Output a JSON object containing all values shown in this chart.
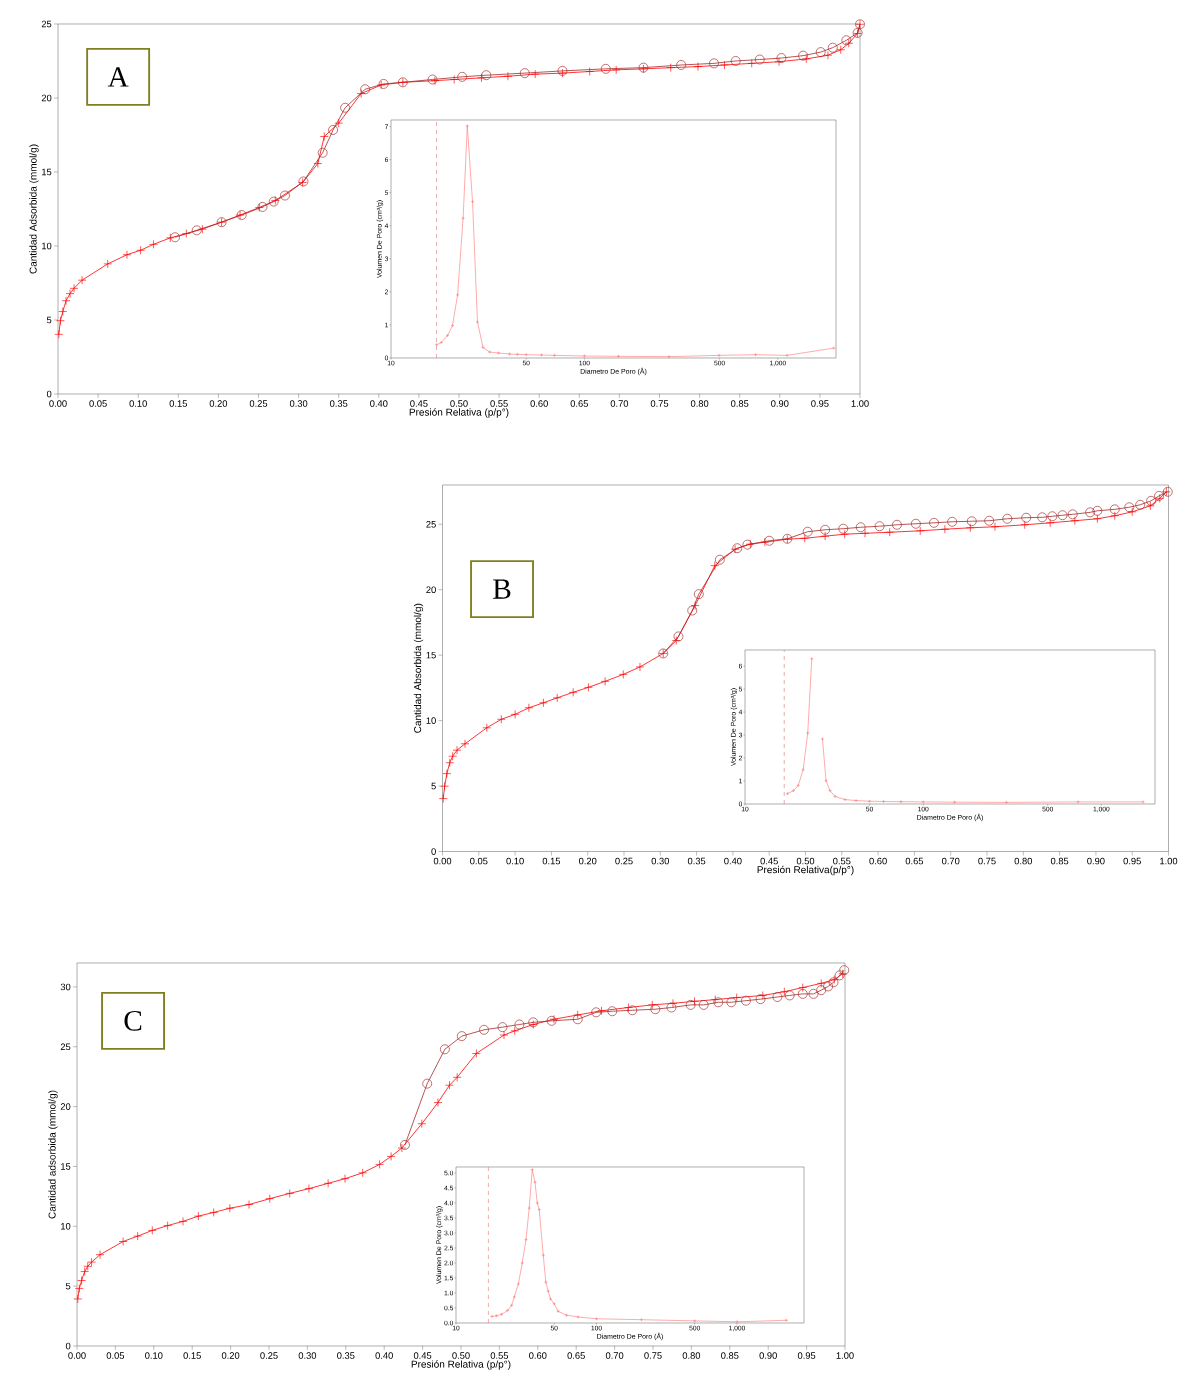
{
  "chart_data": [
    {
      "type": "line",
      "xlabel": "Presión Relativa (p/p°)",
      "ylabel": "Cantidad Adsorbida (mmol/g)",
      "annotations": [
        "A"
      ],
      "xlim": [
        0,
        1
      ],
      "ylim": [
        0,
        25
      ],
      "xticks": [
        {
          "value": 0,
          "label": "0.00"
        },
        {
          "value": 0.05,
          "label": "0.05"
        },
        {
          "value": 0.1,
          "label": "0.10"
        },
        {
          "value": 0.15,
          "label": "0.15"
        },
        {
          "value": 0.2,
          "label": "0.20"
        },
        {
          "value": 0.25,
          "label": "0.25"
        },
        {
          "value": 0.3,
          "label": "0.30"
        },
        {
          "value": 0.35,
          "label": "0.35"
        },
        {
          "value": 0.4,
          "label": "0.40"
        },
        {
          "value": 0.45,
          "label": "0.45"
        },
        {
          "value": 0.5,
          "label": "0.50"
        },
        {
          "value": 0.55,
          "label": "0.55"
        },
        {
          "value": 0.6,
          "label": "0.60"
        },
        {
          "value": 0.65,
          "label": "0.65"
        },
        {
          "value": 0.7,
          "label": "0.70"
        },
        {
          "value": 0.75,
          "label": "0.75"
        },
        {
          "value": 0.8,
          "label": "0.80"
        },
        {
          "value": 0.85,
          "label": "0.85"
        },
        {
          "value": 0.9,
          "label": "0.90"
        },
        {
          "value": 0.95,
          "label": "0.95"
        },
        {
          "value": 1,
          "label": "1.00"
        }
      ],
      "yticks": [
        0,
        5,
        10,
        15,
        20,
        25
      ],
      "series": [
        {
          "color": "#ff0000",
          "marker": "cross",
          "x": [
            0.001,
            0.003,
            0.006,
            0.01,
            0.015,
            0.02,
            0.03,
            0.062,
            0.086,
            0.103,
            0.119,
            0.14,
            0.16,
            0.18,
            0.204,
            0.227,
            0.251,
            0.271,
            0.305,
            0.324,
            0.332,
            0.35,
            0.378,
            0.403,
            0.43,
            0.47,
            0.494,
            0.528,
            0.561,
            0.595,
            0.629,
            0.663,
            0.696,
            0.73,
            0.764,
            0.798,
            0.831,
            0.865,
            0.899,
            0.933,
            0.96,
            0.976,
            0.986,
            0.997,
            1.0
          ],
          "values": [
            4.03,
            4.95,
            5.57,
            6.3,
            6.78,
            7.14,
            7.69,
            8.79,
            9.41,
            9.71,
            10.11,
            10.55,
            10.84,
            11.14,
            11.61,
            12.09,
            12.6,
            13.08,
            14.29,
            15.57,
            17.4,
            18.3,
            20.3,
            20.88,
            21.06,
            21.17,
            21.25,
            21.36,
            21.47,
            21.61,
            21.68,
            21.79,
            21.9,
            21.97,
            22.05,
            22.12,
            22.23,
            22.34,
            22.45,
            22.64,
            22.89,
            23.26,
            23.7,
            24.36,
            24.98
          ]
        },
        {
          "color": "#a52a2a",
          "marker": "circle",
          "x": [
            1.0,
            0.997,
            0.983,
            0.966,
            0.951,
            0.929,
            0.902,
            0.875,
            0.845,
            0.818,
            0.777,
            0.73,
            0.683,
            0.629,
            0.582,
            0.534,
            0.504,
            0.467,
            0.43,
            0.406,
            0.383,
            0.358,
            0.343,
            0.33,
            0.306,
            0.283,
            0.269,
            0.255,
            0.229,
            0.204,
            0.173,
            0.146
          ],
          "values": [
            24.98,
            24.4,
            23.9,
            23.4,
            23.1,
            22.86,
            22.7,
            22.6,
            22.5,
            22.34,
            22.23,
            22.05,
            21.97,
            21.83,
            21.68,
            21.54,
            21.43,
            21.25,
            21.06,
            20.95,
            20.59,
            19.34,
            17.84,
            16.3,
            14.36,
            13.41,
            13.0,
            12.64,
            12.09,
            11.61,
            11.06,
            10.59
          ]
        }
      ]
    },
    {
      "type": "line",
      "xlabel": "Diametro De Poro (Å)",
      "ylabel": "Volumen De Poro (cm³/g)",
      "log": "x",
      "xlim": [
        10,
        2000
      ],
      "ylim": [
        0,
        7.2
      ],
      "xticks": [
        10,
        50,
        100,
        500,
        {
          "value": 1000,
          "label": "1,000"
        }
      ],
      "yticks": [
        0,
        1,
        2,
        3,
        4,
        5,
        6,
        7
      ],
      "ref_lines": [
        {
          "axis": "x",
          "value": 17.2,
          "color": "#e08080",
          "line_style": "dashed"
        }
      ],
      "series": [
        {
          "color": "#ff8080",
          "marker": "cross",
          "x": [
            17.2,
            18.2,
            19.6,
            20.8,
            22.1,
            23.6,
            24.8,
            26.4,
            28.0,
            29.9,
            32.4,
            36,
            41,
            45,
            50,
            60,
            70,
            100,
            150,
            274,
            497,
            767,
            1117,
            1950
          ],
          "values": [
            0.4,
            0.47,
            0.68,
            0.98,
            1.91,
            4.23,
            7.02,
            4.73,
            1.09,
            0.32,
            0.18,
            0.15,
            0.12,
            0.11,
            0.1,
            0.09,
            0.08,
            0.06,
            0.05,
            0.04,
            0.08,
            0.1,
            0.08,
            0.3
          ]
        }
      ]
    },
    {
      "type": "line",
      "xlabel": "Presión Relativa(p/p°)",
      "ylabel": "Cantidad Absorbida (mmol/g)",
      "annotations": [
        "B"
      ],
      "xlim": [
        0,
        1
      ],
      "ylim": [
        0,
        28
      ],
      "xticks": [
        {
          "value": 0,
          "label": "0.00"
        },
        {
          "value": 0.05,
          "label": "0.05"
        },
        {
          "value": 0.1,
          "label": "0.10"
        },
        {
          "value": 0.15,
          "label": "0.15"
        },
        {
          "value": 0.2,
          "label": "0.20"
        },
        {
          "value": 0.25,
          "label": "0.25"
        },
        {
          "value": 0.3,
          "label": "0.30"
        },
        {
          "value": 0.35,
          "label": "0.35"
        },
        {
          "value": 0.4,
          "label": "0.40"
        },
        {
          "value": 0.45,
          "label": "0.45"
        },
        {
          "value": 0.5,
          "label": "0.50"
        },
        {
          "value": 0.55,
          "label": "0.55"
        },
        {
          "value": 0.6,
          "label": "0.60"
        },
        {
          "value": 0.65,
          "label": "0.65"
        },
        {
          "value": 0.7,
          "label": "0.70"
        },
        {
          "value": 0.75,
          "label": "0.75"
        },
        {
          "value": 0.8,
          "label": "0.80"
        },
        {
          "value": 0.85,
          "label": "0.85"
        },
        {
          "value": 0.9,
          "label": "0.90"
        },
        {
          "value": 0.95,
          "label": "0.95"
        },
        {
          "value": 1,
          "label": "1.00"
        }
      ],
      "yticks": [
        0,
        5,
        10,
        15,
        20,
        25
      ],
      "series": [
        {
          "color": "#ff0000",
          "marker": "cross",
          "x": [
            0.001,
            0.003,
            0.006,
            0.01,
            0.014,
            0.02,
            0.031,
            0.061,
            0.081,
            0.1,
            0.119,
            0.139,
            0.158,
            0.18,
            0.201,
            0.224,
            0.249,
            0.272,
            0.304,
            0.322,
            0.348,
            0.375,
            0.403,
            0.424,
            0.444,
            0.475,
            0.499,
            0.527,
            0.554,
            0.582,
            0.616,
            0.658,
            0.692,
            0.727,
            0.761,
            0.802,
            0.837,
            0.871,
            0.902,
            0.926,
            0.95,
            0.975,
            0.988,
            0.997
          ],
          "values": [
            4.04,
            4.99,
            5.95,
            6.78,
            7.28,
            7.74,
            8.23,
            9.45,
            10.1,
            10.48,
            10.98,
            11.36,
            11.74,
            12.16,
            12.54,
            13.0,
            13.53,
            14.1,
            15.13,
            16.12,
            18.79,
            21.84,
            23.09,
            23.48,
            23.63,
            23.86,
            23.93,
            24.09,
            24.24,
            24.31,
            24.39,
            24.5,
            24.62,
            24.73,
            24.81,
            24.96,
            25.11,
            25.27,
            25.42,
            25.65,
            25.95,
            26.41,
            26.98,
            27.48
          ]
        },
        {
          "color": "#a52a2a",
          "marker": "circle",
          "x": [
            0.999,
            0.987,
            0.976,
            0.961,
            0.946,
            0.926,
            0.902,
            0.892,
            0.868,
            0.854,
            0.84,
            0.826,
            0.804,
            0.778,
            0.753,
            0.729,
            0.702,
            0.677,
            0.652,
            0.626,
            0.602,
            0.576,
            0.552,
            0.527,
            0.503,
            0.475,
            0.45,
            0.42,
            0.406,
            0.382,
            0.353,
            0.344,
            0.325,
            0.304
          ],
          "values": [
            27.48,
            27.17,
            26.79,
            26.49,
            26.3,
            26.14,
            26.03,
            25.91,
            25.76,
            25.69,
            25.61,
            25.53,
            25.5,
            25.42,
            25.27,
            25.23,
            25.19,
            25.11,
            25.04,
            24.96,
            24.85,
            24.77,
            24.66,
            24.58,
            24.43,
            23.89,
            23.74,
            23.44,
            23.17,
            22.29,
            19.66,
            18.41,
            16.43,
            15.13
          ]
        }
      ]
    },
    {
      "type": "line",
      "xlabel": "Diametro De Poro (Å)",
      "ylabel": "Volumen De Poro (cm³/g)",
      "log": "x",
      "xlim": [
        10,
        2000
      ],
      "ylim": [
        0,
        6.7
      ],
      "xticks": [
        10,
        50,
        100,
        500,
        {
          "value": 1000,
          "label": "1,000"
        }
      ],
      "yticks": [
        0,
        1,
        2,
        3,
        4,
        5,
        6
      ],
      "ref_lines": [
        {
          "axis": "x",
          "value": 16.6,
          "color": "#e08080",
          "line_style": "dashed"
        }
      ],
      "series": [
        {
          "color": "#ff8080",
          "marker": "cross",
          "x": [
            17.3,
            18.7,
            19.9,
            21.2,
            22.5,
            23.7,
            23.9,
            25.5,
            27.2,
            28.5,
            30.0,
            32.0,
            36.4,
            42,
            50,
            60,
            75,
            100,
            150,
            293,
            740,
            1715
          ],
          "values": [
            0.45,
            0.58,
            0.81,
            1.49,
            3.09,
            6.32,
            null,
            null,
            2.83,
            1.01,
            0.58,
            0.33,
            0.19,
            0.15,
            0.12,
            0.11,
            0.1,
            0.09,
            0.08,
            0.07,
            0.09,
            0.09
          ]
        }
      ]
    },
    {
      "type": "line",
      "xlabel": "Presión Relativa (p/p°)",
      "ylabel": "Cantidad adsorbida (mmol/g)",
      "annotations": [
        "C"
      ],
      "xlim": [
        0,
        1
      ],
      "ylim": [
        0,
        32
      ],
      "xticks": [
        {
          "value": 0,
          "label": "0.00"
        },
        {
          "value": 0.05,
          "label": "0.05"
        },
        {
          "value": 0.1,
          "label": "0.10"
        },
        {
          "value": 0.15,
          "label": "0.15"
        },
        {
          "value": 0.2,
          "label": "0.20"
        },
        {
          "value": 0.25,
          "label": "0.25"
        },
        {
          "value": 0.3,
          "label": "0.30"
        },
        {
          "value": 0.35,
          "label": "0.35"
        },
        {
          "value": 0.4,
          "label": "0.40"
        },
        {
          "value": 0.45,
          "label": "0.45"
        },
        {
          "value": 0.5,
          "label": "0.50"
        },
        {
          "value": 0.55,
          "label": "0.55"
        },
        {
          "value": 0.6,
          "label": "0.60"
        },
        {
          "value": 0.65,
          "label": "0.65"
        },
        {
          "value": 0.7,
          "label": "0.70"
        },
        {
          "value": 0.75,
          "label": "0.75"
        },
        {
          "value": 0.8,
          "label": "0.80"
        },
        {
          "value": 0.85,
          "label": "0.85"
        },
        {
          "value": 0.9,
          "label": "0.90"
        },
        {
          "value": 0.95,
          "label": "0.95"
        },
        {
          "value": 1,
          "label": "1.00"
        }
      ],
      "yticks": [
        0,
        5,
        10,
        15,
        20,
        25,
        30
      ],
      "series": [
        {
          "color": "#ff0000",
          "marker": "cross",
          "x": [
            0.001,
            0.003,
            0.006,
            0.01,
            0.014,
            0.019,
            0.03,
            0.06,
            0.079,
            0.098,
            0.118,
            0.138,
            0.158,
            0.178,
            0.199,
            0.224,
            0.251,
            0.277,
            0.302,
            0.327,
            0.349,
            0.372,
            0.394,
            0.409,
            0.423,
            0.449,
            0.47,
            0.485,
            0.495,
            0.52,
            0.556,
            0.57,
            0.594,
            0.621,
            0.652,
            0.683,
            0.718,
            0.749,
            0.776,
            0.804,
            0.831,
            0.859,
            0.893,
            0.921,
            0.945,
            0.969,
            0.986,
            0.997
          ],
          "values": [
            3.93,
            4.81,
            5.47,
            6.22,
            6.66,
            7.01,
            7.63,
            8.73,
            9.18,
            9.66,
            10.06,
            10.41,
            10.85,
            11.16,
            11.51,
            11.82,
            12.31,
            12.75,
            13.15,
            13.59,
            13.98,
            14.47,
            15.17,
            15.84,
            16.54,
            18.57,
            20.34,
            21.79,
            22.45,
            24.44,
            25.98,
            26.33,
            26.86,
            27.3,
            27.66,
            28.01,
            28.28,
            28.5,
            28.63,
            28.8,
            28.94,
            29.11,
            29.29,
            29.6,
            29.95,
            30.3,
            30.61,
            31.1
          ]
        },
        {
          "color": "#a52a2a",
          "marker": "circle",
          "x": [
            0.999,
            0.993,
            0.985,
            0.978,
            0.969,
            0.959,
            0.945,
            0.928,
            0.912,
            0.89,
            0.871,
            0.852,
            0.835,
            0.816,
            0.799,
            0.774,
            0.753,
            0.723,
            0.697,
            0.676,
            0.652,
            0.618,
            0.594,
            0.576,
            0.554,
            0.53,
            0.501,
            0.479,
            0.456,
            0.427
          ],
          "values": [
            31.4,
            30.97,
            30.39,
            30.04,
            29.73,
            29.42,
            29.42,
            29.29,
            29.16,
            28.98,
            28.85,
            28.72,
            28.72,
            28.5,
            28.5,
            28.28,
            28.14,
            28.05,
            27.97,
            27.88,
            27.3,
            27.17,
            27.04,
            26.86,
            26.64,
            26.42,
            25.89,
            24.79,
            21.92,
            16.8
          ]
        }
      ]
    },
    {
      "type": "line",
      "xlabel": "Diametro De Poro (Å)",
      "ylabel": "Volumen De Poro (cm³/g)",
      "log": "x",
      "xlim": [
        10,
        3000
      ],
      "ylim": [
        0,
        5.2
      ],
      "xticks": [
        10,
        50,
        100,
        500,
        {
          "value": 1000,
          "label": "1,000"
        }
      ],
      "yticks": [
        {
          "value": 0,
          "label": "0.0"
        },
        {
          "value": 0.5,
          "label": "0.5"
        },
        {
          "value": 1,
          "label": "1.0"
        },
        {
          "value": 1.5,
          "label": "1.5"
        },
        {
          "value": 2,
          "label": "2.0"
        },
        {
          "value": 2.5,
          "label": "2.5"
        },
        {
          "value": 3,
          "label": "3.0"
        },
        {
          "value": 3.5,
          "label": "3.5"
        },
        {
          "value": 4,
          "label": "4.0"
        },
        {
          "value": 4.5,
          "label": "4.5"
        },
        {
          "value": 5,
          "label": "5.0"
        }
      ],
      "ref_lines": [
        {
          "axis": "x",
          "value": 17.0,
          "color": "#e08080",
          "line_style": "dashed"
        }
      ],
      "series": [
        {
          "color": "#ff8080",
          "marker": "cross",
          "x": [
            18,
            19.4,
            21.1,
            23.3,
            24.9,
            26.0,
            27.8,
            29.6,
            31.5,
            33.2,
            34.9,
            36.5,
            37.9,
            39.1,
            41.8,
            43.6,
            45.3,
            47.1,
            50,
            53.3,
            61.2,
            74,
            100,
            209,
            500,
            1000,
            2245
          ],
          "values": [
            0.22,
            0.24,
            0.29,
            0.42,
            0.59,
            0.87,
            1.3,
            2.0,
            2.78,
            3.83,
            5.11,
            4.69,
            4.0,
            3.78,
            2.26,
            1.36,
            1.06,
            0.8,
            0.64,
            0.39,
            0.26,
            0.2,
            0.14,
            0.11,
            0.07,
            0.04,
            0.09
          ]
        }
      ]
    }
  ]
}
